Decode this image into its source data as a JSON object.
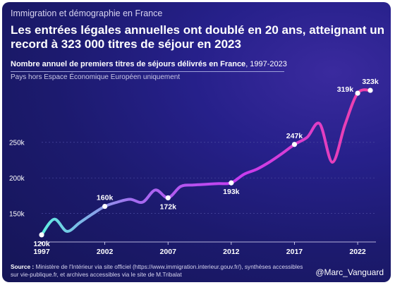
{
  "header": {
    "kicker": "Immigration et démographie en France",
    "headline": "Les entrées légales annuelles ont doublé en 20 ans, atteignant un record à 323 000 titres de séjour en 2023",
    "subtitle_bold": "Nombre annuel de premiers titres de séjours délivrés en France",
    "subtitle_rest": ", 1997-2023",
    "scope": "Pays hors Espace Économique Européen uniquement"
  },
  "footer": {
    "source_label": "Source :",
    "source_text": " Ministère de l'Intérieur via site officiel (https://www.immigration.interieur.gouv.fr/), synthèses accessibles sur vie-publique.fr, et archives accessibles via le site de M.Tribalat",
    "credit": "@Marc_Vanguard"
  },
  "colors": {
    "line_start": "#5ff0e0",
    "line_mid": "#a46cf0",
    "line_purple": "#c73cf0",
    "line_end": "#f040a8",
    "grid": "#4a4aa0"
  },
  "chart_data": {
    "type": "line",
    "x": [
      1997,
      1998,
      1999,
      2000,
      2001,
      2002,
      2003,
      2004,
      2005,
      2006,
      2007,
      2008,
      2009,
      2010,
      2011,
      2012,
      2013,
      2014,
      2015,
      2016,
      2017,
      2018,
      2019,
      2020,
      2021,
      2022,
      2023
    ],
    "y": [
      120000,
      142000,
      125000,
      137000,
      149000,
      160000,
      166000,
      170000,
      166000,
      183000,
      172000,
      188000,
      190000,
      191000,
      192000,
      193000,
      205000,
      212000,
      222000,
      234000,
      247000,
      257000,
      276000,
      222000,
      275000,
      319000,
      323000
    ],
    "labels": [
      {
        "x": 1997,
        "text": "120k",
        "pos": "below"
      },
      {
        "x": 2002,
        "text": "160k",
        "pos": "above"
      },
      {
        "x": 2007,
        "text": "172k",
        "pos": "below"
      },
      {
        "x": 2012,
        "text": "193k",
        "pos": "below"
      },
      {
        "x": 2017,
        "text": "247k",
        "pos": "above"
      },
      {
        "x": 2022,
        "text": "319k",
        "pos": "left"
      },
      {
        "x": 2023,
        "text": "323k",
        "pos": "above"
      }
    ],
    "marker_years": [
      1997,
      2002,
      2007,
      2012,
      2017,
      2022,
      2023
    ],
    "xticks": [
      1997,
      2002,
      2007,
      2012,
      2017,
      2022
    ],
    "yticks": [
      150000,
      200000,
      250000
    ],
    "ytick_labels": [
      "150k",
      "200k",
      "250k"
    ],
    "xlim": [
      1997,
      2023
    ],
    "ylim": [
      110000,
      330000
    ],
    "grid": "horizontal"
  }
}
